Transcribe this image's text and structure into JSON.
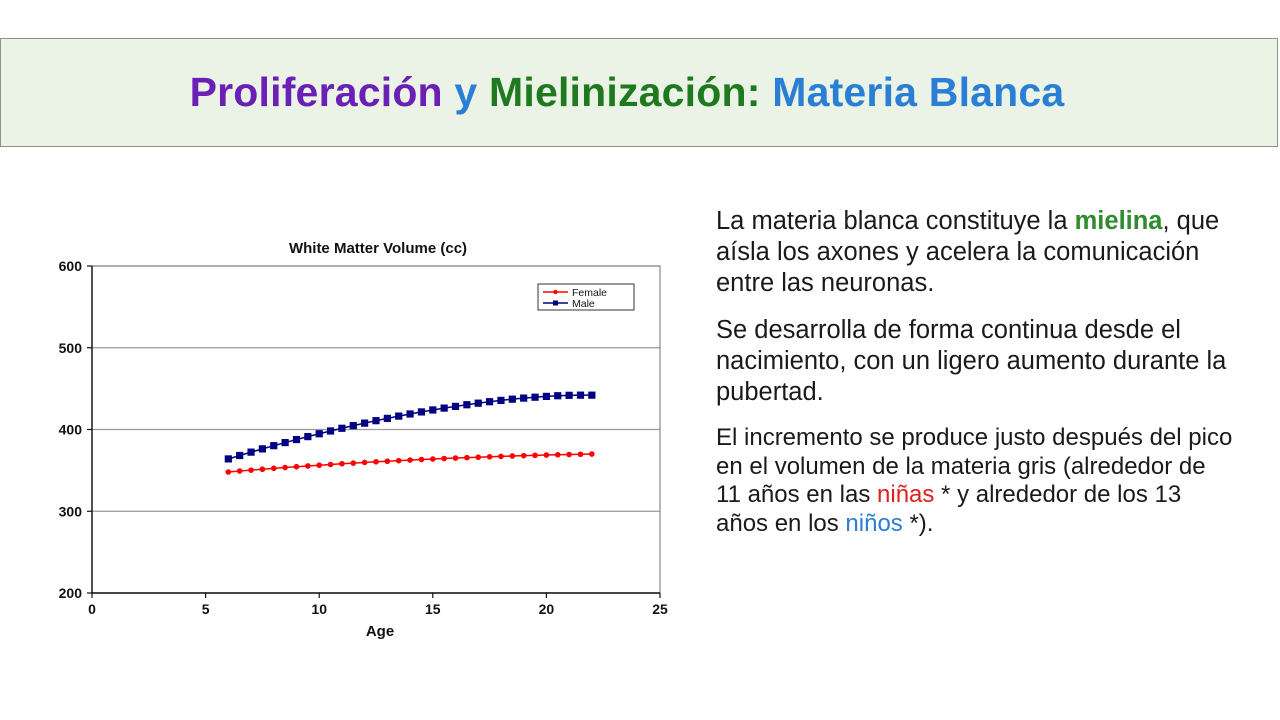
{
  "slide": {
    "title": {
      "part1": "Proliferación",
      "part2": "y",
      "part3": "Mielinización:",
      "part4": "Materia Blanca",
      "colors": {
        "part1": "#6a1fb5",
        "part2": "#2a7fd4",
        "part3": "#1f7a1f",
        "part4": "#2a7fd4"
      }
    },
    "paragraph1": {
      "text_a": "La materia blanca constituye la ",
      "highlight": "mielina",
      "text_b": ", que aísla los axones y acelera la comunicación entre las neuronas."
    },
    "paragraph2": {
      "text": "Se desarrolla de forma continua desde el nacimiento, con un ligero aumento durante la pubertad."
    },
    "paragraph3": {
      "text_a": "El incremento se produce justo después del pico en el volumen de la materia gris (alrededor de 11 años en las ",
      "girls": "niñas",
      "text_b": " * y alrededor de los 13 años en los ",
      "boys": "niños",
      "text_c": " *)."
    }
  },
  "chart_data": {
    "type": "line",
    "title": "White Matter Volume (cc)",
    "xlabel": "Age",
    "ylabel": "",
    "xlim": [
      0,
      25
    ],
    "ylim": [
      200,
      600
    ],
    "xticks": [
      0,
      5,
      10,
      15,
      20,
      25
    ],
    "yticks": [
      200,
      300,
      400,
      500,
      600
    ],
    "grid": "horizontal",
    "legend_position": "top-right",
    "x": [
      6,
      6.5,
      7,
      7.5,
      8,
      8.5,
      9,
      9.5,
      10,
      10.5,
      11,
      11.5,
      12,
      12.5,
      13,
      13.5,
      14,
      14.5,
      15,
      15.5,
      16,
      16.5,
      17,
      17.5,
      18,
      18.5,
      19,
      19.5,
      20,
      20.5,
      21,
      21.5,
      22
    ],
    "series": [
      {
        "name": "Female",
        "color": "#ff0000",
        "marker": "circle",
        "values": [
          348,
          349.2,
          350.3,
          351.4,
          352.5,
          353.5,
          354.5,
          355.4,
          356.3,
          357.2,
          358.1,
          358.9,
          359.7,
          360.5,
          361.2,
          361.9,
          362.6,
          363.3,
          363.9,
          364.5,
          365.1,
          365.6,
          366.1,
          366.6,
          367.1,
          367.6,
          368,
          368.4,
          368.8,
          369.1,
          369.4,
          369.7,
          370
        ]
      },
      {
        "name": "Male",
        "color": "#000080",
        "marker": "square",
        "values": [
          364,
          368.2,
          372.3,
          376.3,
          380.2,
          384,
          387.7,
          391.3,
          394.8,
          398.2,
          401.5,
          404.7,
          407.8,
          410.8,
          413.6,
          416.4,
          419,
          421.5,
          423.9,
          426.2,
          428.3,
          430.3,
          432.2,
          434,
          435.6,
          437.1,
          438.4,
          439.5,
          440.5,
          441.3,
          441.8,
          442,
          442
        ]
      }
    ]
  }
}
